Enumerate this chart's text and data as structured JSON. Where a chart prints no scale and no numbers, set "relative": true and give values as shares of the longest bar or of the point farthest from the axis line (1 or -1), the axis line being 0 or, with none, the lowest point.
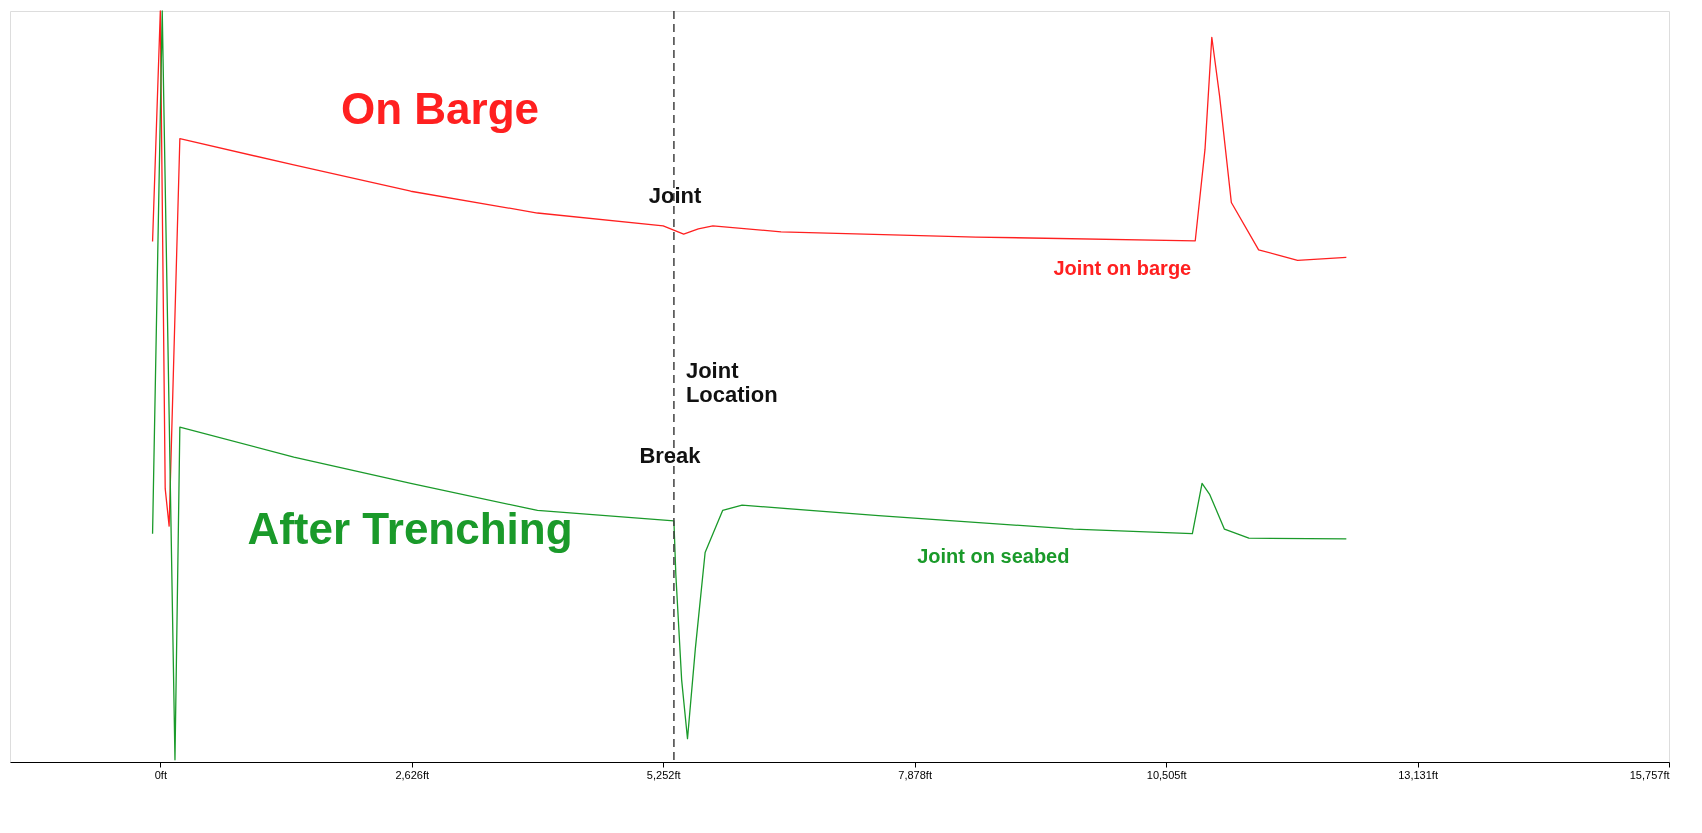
{
  "chart_data": {
    "type": "line",
    "relative": true,
    "grid": false,
    "xlim": [
      -1570,
      15757
    ],
    "xticks": [
      {
        "value": 0,
        "label": "0ft"
      },
      {
        "value": 2626,
        "label": "2,626ft"
      },
      {
        "value": 5252,
        "label": "5,252ft"
      },
      {
        "value": 7878,
        "label": "7,878ft"
      },
      {
        "value": 10505,
        "label": "10,505ft"
      },
      {
        "value": 13131,
        "label": "13,131ft"
      },
      {
        "value": 15757,
        "label": "15,757ft"
      }
    ],
    "series": [
      {
        "name": "Joint on barge",
        "color": "#ff2020",
        "x": [
          -81,
          0,
          51,
          92,
          204,
          1394,
          2616,
          3939,
          5252,
          5466,
          5619,
          5771,
          6483,
          8519,
          10809,
          10911,
          10982,
          11063,
          11186,
          11471,
          11878,
          12387
        ],
        "values": [
          0.693,
          1.0,
          0.364,
          0.314,
          0.83,
          0.795,
          0.76,
          0.731,
          0.714,
          0.703,
          0.71,
          0.714,
          0.706,
          0.699,
          0.694,
          0.816,
          0.965,
          0.887,
          0.745,
          0.682,
          0.668,
          0.672
        ]
      },
      {
        "name": "Joint on seabed",
        "color": "#1a9a2a",
        "x": [
          -81,
          20,
          92,
          153,
          204,
          1394,
          2616,
          3939,
          5364,
          5384,
          5445,
          5506,
          5588,
          5690,
          5873,
          6076,
          7501,
          9537,
          10779,
          10880,
          10961,
          11114,
          11369,
          12387
        ],
        "values": [
          0.304,
          1.0,
          0.463,
          0.003,
          0.446,
          0.406,
          0.371,
          0.335,
          0.321,
          0.25,
          0.109,
          0.031,
          0.151,
          0.279,
          0.335,
          0.342,
          0.328,
          0.31,
          0.304,
          0.371,
          0.356,
          0.31,
          0.298,
          0.297
        ]
      }
    ],
    "ref_lines": [
      {
        "axis": "x",
        "value": 5364,
        "label": "Joint Location",
        "line_style": "dashed",
        "color": "#404040"
      }
    ],
    "annotations": [
      "On Barge",
      "After Trenching",
      "Joint",
      "Break"
    ]
  }
}
